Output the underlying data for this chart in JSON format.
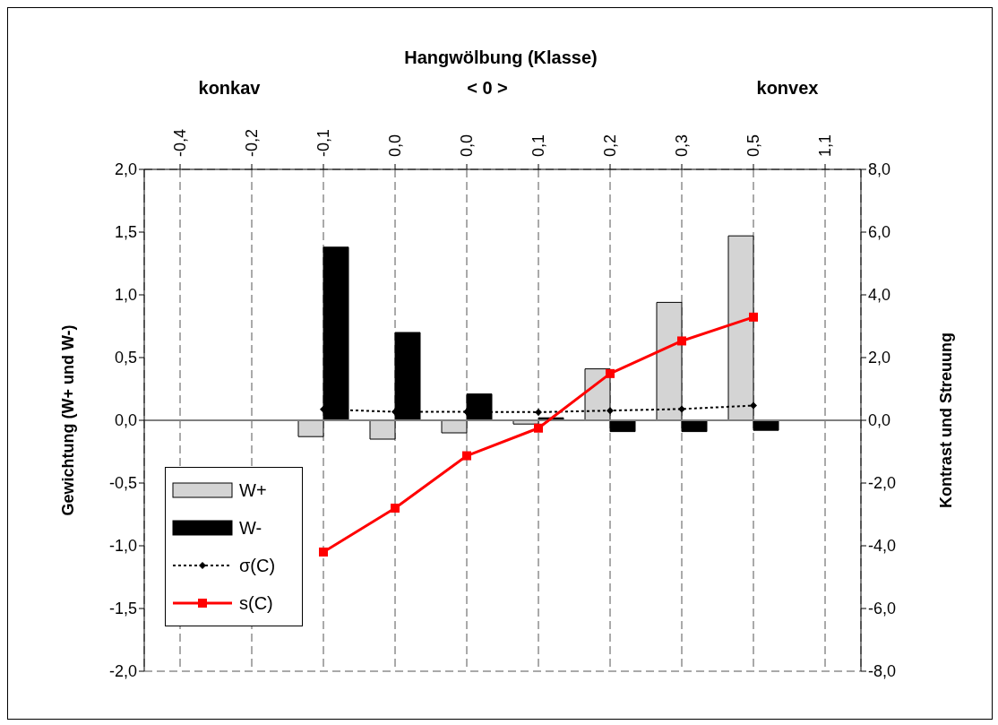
{
  "chart_data": {
    "type": "bar",
    "xlabel": "Hangwölbung (Klasse)",
    "ylabel": "Gewichtung (W+ und W-)",
    "y2label": "Kontrast und Streuung",
    "annotations": [
      "konkav",
      "< 0 >",
      "konvex"
    ],
    "categories": [
      "-0,4",
      "-0,2",
      "-0,1",
      "0,0",
      "0,0",
      "0,1",
      "0,2",
      "0,3",
      "0,5",
      "1,1"
    ],
    "series": [
      {
        "name": "W+",
        "color": "#d4d4d4",
        "values": [
          null,
          null,
          -0.13,
          -0.15,
          -0.1,
          -0.03,
          0.41,
          0.94,
          1.47,
          null
        ]
      },
      {
        "name": "W-",
        "color": "#000000",
        "values": [
          null,
          null,
          1.38,
          0.7,
          0.21,
          0.02,
          -0.09,
          -0.09,
          -0.08,
          null
        ]
      },
      {
        "name": "σ(C)",
        "type": "line",
        "axis": "y2",
        "color": "#000000",
        "marker": "diamond",
        "line_style": "dotted",
        "values": [
          null,
          null,
          0.35,
          0.27,
          0.27,
          0.26,
          0.31,
          0.36,
          0.47,
          null
        ]
      },
      {
        "name": "s(C)",
        "type": "line",
        "axis": "y2",
        "color": "#ff0000",
        "marker": "square",
        "line_style": "solid",
        "values": [
          null,
          null,
          -4.2,
          -2.8,
          -1.13,
          -0.25,
          1.49,
          2.53,
          3.29,
          null
        ]
      }
    ],
    "ylim": [
      -2,
      2
    ],
    "yticks": [
      {
        "value": -2,
        "label": "-2,0"
      },
      {
        "value": -1.5,
        "label": "-1,5"
      },
      {
        "value": -1,
        "label": "-1,0"
      },
      {
        "value": -0.5,
        "label": "-0,5"
      },
      {
        "value": 0,
        "label": "0,0"
      },
      {
        "value": 0.5,
        "label": "0,5"
      },
      {
        "value": 1,
        "label": "1,0"
      },
      {
        "value": 1.5,
        "label": "1,5"
      },
      {
        "value": 2,
        "label": "2,0"
      }
    ],
    "y2lim": [
      -8,
      8
    ],
    "y2ticks": [
      {
        "value": -8,
        "label": "-8,0"
      },
      {
        "value": -6,
        "label": "-6,0"
      },
      {
        "value": -4,
        "label": "-4,0"
      },
      {
        "value": -2,
        "label": "-2,0"
      },
      {
        "value": 0,
        "label": "0,0"
      },
      {
        "value": 2,
        "label": "2,0"
      },
      {
        "value": 4,
        "label": "4,0"
      },
      {
        "value": 6,
        "label": "6,0"
      },
      {
        "value": 8,
        "label": "8,0"
      }
    ],
    "ref_lines": [
      {
        "axis": "y",
        "value": 0,
        "color": "#808080"
      }
    ],
    "grid": true,
    "legend": "bottom left"
  }
}
